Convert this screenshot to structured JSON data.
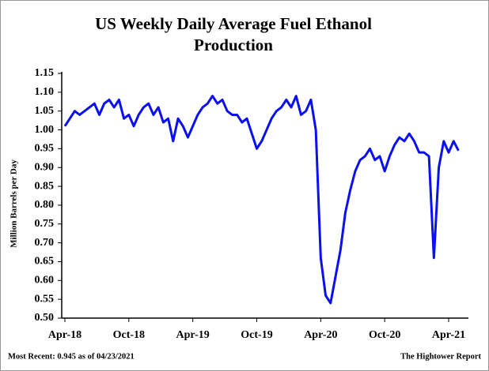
{
  "chart_data": {
    "type": "line",
    "title": "US Weekly Daily Average Fuel Ethanol Production",
    "y_label": "Million Barrels per Day",
    "footer_left": "Most Recent: 0.945 as of 04/23/2021",
    "footer_right": "The Hightower Report",
    "categories": [
      "Apr-18",
      null,
      null,
      null,
      null,
      null,
      null,
      null,
      null,
      null,
      null,
      null,
      null,
      "Oct-18",
      null,
      null,
      null,
      null,
      null,
      null,
      null,
      null,
      null,
      null,
      null,
      null,
      "Apr-19",
      null,
      null,
      null,
      null,
      null,
      null,
      null,
      null,
      null,
      null,
      null,
      null,
      "Oct-19",
      null,
      null,
      null,
      null,
      null,
      null,
      null,
      null,
      null,
      null,
      null,
      null,
      "Apr-20",
      null,
      null,
      null,
      null,
      null,
      null,
      null,
      null,
      null,
      null,
      null,
      null,
      "Oct-20",
      null,
      null,
      null,
      null,
      null,
      null,
      null,
      null,
      null,
      null,
      null,
      null,
      "Apr-21",
      null,
      null
    ],
    "series": [
      {
        "name": "Fuel Ethanol Production",
        "color": "#0a10f0",
        "values": [
          1.01,
          1.03,
          1.05,
          1.04,
          1.05,
          1.06,
          1.07,
          1.04,
          1.07,
          1.08,
          1.06,
          1.08,
          1.03,
          1.04,
          1.01,
          1.04,
          1.06,
          1.07,
          1.04,
          1.06,
          1.02,
          1.03,
          0.97,
          1.03,
          1.01,
          0.98,
          1.01,
          1.04,
          1.06,
          1.07,
          1.09,
          1.07,
          1.08,
          1.05,
          1.04,
          1.04,
          1.02,
          1.03,
          0.99,
          0.95,
          0.97,
          1.0,
          1.03,
          1.05,
          1.06,
          1.08,
          1.06,
          1.09,
          1.04,
          1.05,
          1.08,
          1.0,
          0.66,
          0.56,
          0.54,
          0.61,
          0.68,
          0.78,
          0.84,
          0.89,
          0.92,
          0.93,
          0.95,
          0.92,
          0.93,
          0.89,
          0.93,
          0.96,
          0.98,
          0.97,
          0.99,
          0.97,
          0.94,
          0.94,
          0.93,
          0.66,
          0.9,
          0.97,
          0.94,
          0.97,
          0.945
        ]
      }
    ],
    "ylim": [
      0.5,
      1.15
    ],
    "yticks": [
      {
        "value": 0.5,
        "label": "0.50"
      },
      0.55,
      {
        "value": 0.6,
        "label": "0.60"
      },
      0.65,
      {
        "value": 0.7,
        "label": "0.70"
      },
      0.75,
      {
        "value": 0.8,
        "label": "0.80"
      },
      0.85,
      {
        "value": 0.9,
        "label": "0.90"
      },
      0.95,
      {
        "value": 1.0,
        "label": "1.00"
      },
      1.05,
      {
        "value": 1.1,
        "label": "1.10"
      },
      1.15
    ],
    "grid": false
  }
}
